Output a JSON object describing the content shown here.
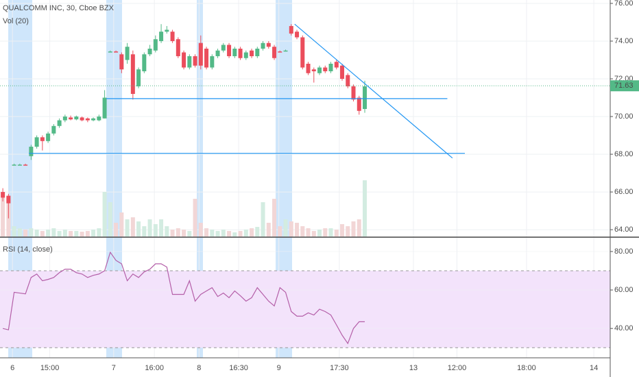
{
  "chart_data": [
    {
      "type": "candlestick",
      "title": "QUALCOMM INC, 30, Cboe BZX",
      "volume_label": "Vol (20)",
      "up_color": "#53b987",
      "down_color": "#eb4d5c",
      "volume_up_color": "#d3ece1",
      "volume_down_color": "#f2d6d6",
      "x": [
        0,
        1,
        2,
        3,
        4,
        5,
        6,
        7,
        8,
        9,
        10,
        11,
        12,
        13,
        14,
        15,
        16,
        17,
        18,
        19,
        20,
        21,
        22,
        23,
        24,
        25,
        26,
        27,
        28,
        29,
        30,
        31,
        32,
        33,
        34,
        35,
        36,
        37,
        38,
        39,
        40,
        41,
        42,
        43,
        44,
        45,
        46,
        47,
        48,
        49,
        50,
        51,
        52,
        53,
        54,
        55,
        56,
        57,
        58,
        59,
        60,
        61,
        62,
        63,
        64
      ],
      "open": [
        66.0,
        65.8,
        67.43,
        67.43,
        67.45,
        67.9,
        68.4,
        68.9,
        68.7,
        69.1,
        69.5,
        69.8,
        69.95,
        69.85,
        69.95,
        69.9,
        69.8,
        69.8,
        69.9,
        73.43,
        73.45,
        73.3,
        73.0,
        73.3,
        71.6,
        72.4,
        73.3,
        73.5,
        74.0,
        74.5,
        74.5,
        74.1,
        73.4,
        72.6,
        73.2,
        73.9,
        73.6,
        72.6,
        73.2,
        73.5,
        73.8,
        73.2,
        73.6,
        73.1,
        73.5,
        73.2,
        73.6,
        73.9,
        73.7,
        73.45,
        73.48,
        74.8,
        74.5,
        74.2,
        72.8,
        72.5,
        72.3,
        72.6,
        72.4,
        72.9,
        72.7,
        72.2,
        71.6,
        71.0,
        70.4
      ],
      "high": [
        66.2,
        65.9,
        67.5,
        67.5,
        67.5,
        68.5,
        69.0,
        69.0,
        69.2,
        69.6,
        69.9,
        70.1,
        70.05,
        70.05,
        70.0,
        69.95,
        69.95,
        70.1,
        71.4,
        73.5,
        73.5,
        73.4,
        73.9,
        73.5,
        72.6,
        73.4,
        73.8,
        74.3,
        74.9,
        74.8,
        74.6,
        74.2,
        73.5,
        73.3,
        73.3,
        74.3,
        73.7,
        73.3,
        73.6,
        73.9,
        73.9,
        73.7,
        73.7,
        73.5,
        73.6,
        73.7,
        74.0,
        74.0,
        73.8,
        73.5,
        73.55,
        74.9,
        74.6,
        74.3,
        72.9,
        72.6,
        72.7,
        72.7,
        72.9,
        73.0,
        72.8,
        72.3,
        71.7,
        71.1,
        71.9
      ],
      "low": [
        65.5,
        64.6,
        67.4,
        67.4,
        67.4,
        67.7,
        68.3,
        68.2,
        68.6,
        69.0,
        69.4,
        69.7,
        69.8,
        69.8,
        69.75,
        69.7,
        69.75,
        69.75,
        69.9,
        73.4,
        73.4,
        72.3,
        72.8,
        70.9,
        71.5,
        72.3,
        73.2,
        73.4,
        73.9,
        74.4,
        73.9,
        73.1,
        72.5,
        72.5,
        72.6,
        72.5,
        72.5,
        72.5,
        73.1,
        73.4,
        73.1,
        73.1,
        73.0,
        73.0,
        73.1,
        73.1,
        73.5,
        73.6,
        73.0,
        73.4,
        73.45,
        74.3,
        74.1,
        72.5,
        72.2,
        71.8,
        72.2,
        72.3,
        72.3,
        72.5,
        71.9,
        71.5,
        70.8,
        70.1,
        70.2
      ],
      "close": [
        65.7,
        65.4,
        67.45,
        67.45,
        67.42,
        68.4,
        68.9,
        68.7,
        69.1,
        69.5,
        69.8,
        70.0,
        69.85,
        70.0,
        69.8,
        69.8,
        69.9,
        70.0,
        71.0,
        73.45,
        73.42,
        72.5,
        73.7,
        71.2,
        72.5,
        73.3,
        73.6,
        74.1,
        74.5,
        74.6,
        74.0,
        73.2,
        72.6,
        73.2,
        72.7,
        72.7,
        72.6,
        73.2,
        73.5,
        73.8,
        73.2,
        73.6,
        73.1,
        73.4,
        73.2,
        73.6,
        73.9,
        73.7,
        73.1,
        73.43,
        73.5,
        74.4,
        74.2,
        72.6,
        72.3,
        72.4,
        72.6,
        72.4,
        72.8,
        72.6,
        72.0,
        71.6,
        70.9,
        70.3,
        71.6
      ],
      "volume": [
        60,
        55,
        15,
        12,
        10,
        12,
        10,
        8,
        10,
        12,
        8,
        10,
        8,
        8,
        7,
        8,
        10,
        12,
        65,
        50,
        20,
        35,
        25,
        28,
        22,
        15,
        25,
        18,
        25,
        15,
        10,
        12,
        10,
        8,
        55,
        20,
        12,
        10,
        8,
        10,
        8,
        6,
        8,
        10,
        12,
        14,
        50,
        20,
        55,
        15,
        25,
        22,
        20,
        15,
        12,
        8,
        10,
        12,
        12,
        10,
        18,
        15,
        22,
        25,
        82
      ],
      "volume_ylim": [
        0,
        100
      ],
      "last_price": 71.63,
      "trendlines": [
        {
          "x": [
            18.3,
            78.6
          ],
          "y": [
            70.95,
            70.95
          ]
        },
        {
          "x": [
            4.6,
            81.7
          ],
          "y": [
            68.05,
            68.05
          ]
        },
        {
          "x": [
            51.6,
            79.5
          ],
          "y": [
            74.9,
            67.8
          ]
        }
      ],
      "line_color": "#2196f3",
      "xlim": [
        -0.5,
        107.4
      ],
      "xticks": [
        {
          "value": 1.7,
          "label": "6"
        },
        {
          "value": 8.3,
          "label": "15:00"
        },
        {
          "value": 19.6,
          "label": "7"
        },
        {
          "value": 26.8,
          "label": "16:00"
        },
        {
          "value": 34.7,
          "label": "8"
        },
        {
          "value": 41.7,
          "label": "16:30"
        },
        {
          "value": 48.8,
          "label": "9"
        },
        {
          "value": 59.5,
          "label": "17:30"
        },
        {
          "value": 72.6,
          "label": "13"
        },
        {
          "value": 80.3,
          "label": "12:00"
        },
        {
          "value": 92.6,
          "label": "18:00"
        },
        {
          "value": 104.5,
          "label": "14"
        }
      ],
      "ylim": [
        63.64,
        76.18
      ],
      "yticks": [
        {
          "value": 64,
          "label": "64.00"
        },
        {
          "value": 66,
          "label": "66.00"
        },
        {
          "value": 68,
          "label": "68.00"
        },
        {
          "value": 70,
          "label": "70.00"
        },
        {
          "value": 72,
          "label": "72.00"
        },
        {
          "value": 74,
          "label": "74.00"
        },
        {
          "value": 76,
          "label": "76.00"
        }
      ],
      "grid": true
    },
    {
      "type": "line",
      "title": "RSI (14, close)",
      "color": "#b45fa8",
      "band": [
        30,
        70
      ],
      "band_color": "#f3e3fb",
      "values": [
        40,
        39.3,
        58.8,
        58.4,
        58,
        66.5,
        68.3,
        64.8,
        65.5,
        66.5,
        69,
        70.8,
        70.8,
        69,
        68.3,
        66.5,
        67.6,
        68.3,
        70,
        79.6,
        75.4,
        73.6,
        64.8,
        68.3,
        66.5,
        69.4,
        70.8,
        73.6,
        73.6,
        71.9,
        57.7,
        57.7,
        57.7,
        64.8,
        54.2,
        57.7,
        59.5,
        61.2,
        56.6,
        58.4,
        56,
        59.5,
        57,
        54.2,
        56,
        61.2,
        57.7,
        54.2,
        51.7,
        61.2,
        58.8,
        48.8,
        46.4,
        46.4,
        48.1,
        47,
        50,
        48.8,
        47,
        41.8,
        36.5,
        32.2,
        40,
        43.5,
        43.5
      ],
      "ylim": [
        25.1,
        87.1
      ],
      "yticks": [
        {
          "value": 40,
          "label": "40.00"
        },
        {
          "value": 60,
          "label": "60.00"
        },
        {
          "value": 80,
          "label": "80.00"
        }
      ],
      "grid": true
    }
  ]
}
